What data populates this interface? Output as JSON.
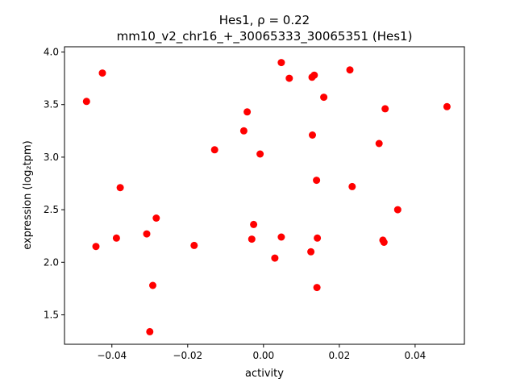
{
  "chart_data": {
    "type": "scatter",
    "title_line1": "Hes1, ρ = 0.22",
    "title_line2": "mm10_v2_chr16_+_30065333_30065351 (Hes1)",
    "xlabel": "activity",
    "ylabel": "expression (log₂tpm)",
    "xlim": [
      -0.0525,
      0.053
    ],
    "ylim": [
      1.22,
      4.05
    ],
    "xticks": [
      -0.04,
      -0.02,
      0.0,
      0.02,
      0.04
    ],
    "xtick_labels": [
      "−0.04",
      "−0.02",
      "0.00",
      "0.02",
      "0.04"
    ],
    "yticks": [
      1.5,
      2.0,
      2.5,
      3.0,
      3.5,
      4.0
    ],
    "ytick_labels": [
      "1.5",
      "2.0",
      "2.5",
      "3.0",
      "3.5",
      "4.0"
    ],
    "grid": false,
    "marker_color": "#ff0000",
    "points": [
      {
        "x": -0.0467,
        "y": 3.53
      },
      {
        "x": -0.0425,
        "y": 3.8
      },
      {
        "x": -0.0442,
        "y": 2.15
      },
      {
        "x": -0.0388,
        "y": 2.23
      },
      {
        "x": -0.0378,
        "y": 2.71
      },
      {
        "x": -0.0308,
        "y": 2.27
      },
      {
        "x": -0.03,
        "y": 1.34
      },
      {
        "x": -0.0292,
        "y": 1.78
      },
      {
        "x": -0.0283,
        "y": 2.42
      },
      {
        "x": -0.0183,
        "y": 2.16
      },
      {
        "x": -0.0129,
        "y": 3.07
      },
      {
        "x": -0.0052,
        "y": 3.25
      },
      {
        "x": -0.0043,
        "y": 3.43
      },
      {
        "x": -0.0031,
        "y": 2.22
      },
      {
        "x": -0.0026,
        "y": 2.36
      },
      {
        "x": -0.0009,
        "y": 3.03
      },
      {
        "x": 0.003,
        "y": 2.04
      },
      {
        "x": 0.0047,
        "y": 3.9
      },
      {
        "x": 0.0047,
        "y": 2.24
      },
      {
        "x": 0.0068,
        "y": 3.75
      },
      {
        "x": 0.0125,
        "y": 2.1
      },
      {
        "x": 0.0128,
        "y": 3.76
      },
      {
        "x": 0.0129,
        "y": 3.21
      },
      {
        "x": 0.0134,
        "y": 3.78
      },
      {
        "x": 0.014,
        "y": 2.78
      },
      {
        "x": 0.0141,
        "y": 1.76
      },
      {
        "x": 0.0142,
        "y": 2.23
      },
      {
        "x": 0.0159,
        "y": 3.57
      },
      {
        "x": 0.0228,
        "y": 3.83
      },
      {
        "x": 0.0234,
        "y": 2.72
      },
      {
        "x": 0.0305,
        "y": 3.13
      },
      {
        "x": 0.0315,
        "y": 2.21
      },
      {
        "x": 0.0318,
        "y": 2.19
      },
      {
        "x": 0.0321,
        "y": 3.46
      },
      {
        "x": 0.0354,
        "y": 2.5
      },
      {
        "x": 0.0484,
        "y": 3.48
      }
    ]
  }
}
